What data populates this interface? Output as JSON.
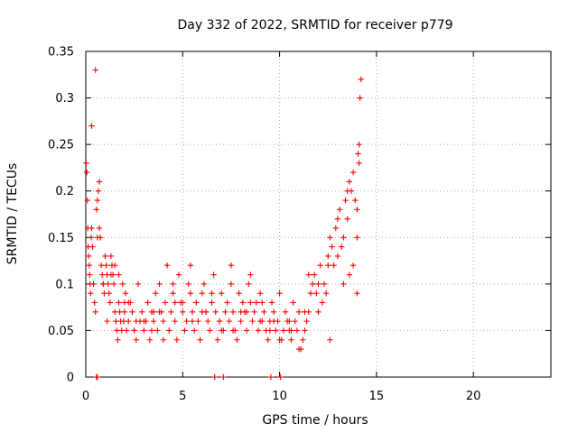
{
  "chart_data": {
    "type": "scatter",
    "title": "Day 332 of 2022, SRMTID for receiver p779",
    "xlabel": "GPS time / hours",
    "ylabel": "SRMTID / TECUs",
    "xlim": [
      0,
      24
    ],
    "ylim": [
      0,
      0.35
    ],
    "xticks": [
      0,
      5,
      10,
      15,
      20
    ],
    "yticks": [
      0,
      0.05,
      0.1,
      0.15,
      0.2,
      0.25,
      0.3,
      0.35
    ],
    "grid": true,
    "marker": "+",
    "color": "#ff0000",
    "series": [
      {
        "name": "SRMTID",
        "x": [
          0.02,
          0.05,
          0.08,
          0.1,
          0.12,
          0.15,
          0.18,
          0.2,
          0.22,
          0.25,
          0.28,
          0.3,
          0.35,
          0.4,
          0.45,
          0.5,
          0.55,
          0.6,
          0.65,
          0.7,
          0.75,
          0.8,
          0.85,
          0.9,
          0.95,
          1.0,
          1.05,
          1.1,
          1.15,
          1.2,
          1.25,
          1.3,
          1.35,
          1.4,
          1.45,
          1.5,
          1.55,
          1.6,
          1.65,
          1.7,
          1.75,
          1.8,
          1.85,
          1.9,
          1.95,
          2.0,
          2.05,
          2.1,
          2.2,
          2.3,
          2.4,
          2.5,
          2.6,
          2.7,
          2.8,
          2.9,
          3.0,
          3.1,
          3.2,
          3.3,
          3.4,
          3.5,
          3.6,
          3.7,
          3.8,
          3.9,
          4.0,
          4.1,
          4.2,
          4.3,
          4.4,
          4.5,
          4.6,
          4.7,
          4.8,
          4.9,
          5.0,
          5.1,
          5.2,
          5.3,
          5.4,
          5.5,
          5.6,
          5.7,
          5.8,
          5.9,
          6.0,
          6.1,
          6.2,
          6.3,
          6.4,
          6.5,
          6.6,
          6.7,
          6.8,
          6.9,
          7.0,
          7.1,
          7.2,
          7.3,
          7.4,
          7.5,
          7.6,
          7.7,
          7.8,
          7.9,
          8.0,
          8.1,
          8.2,
          8.3,
          8.4,
          8.5,
          8.6,
          8.7,
          8.8,
          8.9,
          9.0,
          9.1,
          9.2,
          9.3,
          9.4,
          9.5,
          9.6,
          9.7,
          9.8,
          9.9,
          10.0,
          10.1,
          10.2,
          10.3,
          10.4,
          10.5,
          10.6,
          10.7,
          10.8,
          10.9,
          11.0,
          11.1,
          11.2,
          11.3,
          11.4,
          11.5,
          11.6,
          11.7,
          11.8,
          11.9,
          12.0,
          12.1,
          12.2,
          12.3,
          12.4,
          12.5,
          12.6,
          12.7,
          12.8,
          12.9,
          13.0,
          13.1,
          13.2,
          13.3,
          13.4,
          13.5,
          13.6,
          13.7,
          13.8,
          13.9,
          14.0,
          14.05,
          14.1,
          14.15,
          14.2,
          0.5,
          0.6,
          0.9,
          1.3,
          1.7,
          2.2,
          2.6,
          3.4,
          3.8,
          4.6,
          5.4,
          6.2,
          6.9,
          7.6,
          8.3,
          9.1,
          9.7,
          10.6,
          11.3,
          12.6,
          13.3,
          13.6,
          13.8,
          14.0,
          14.1,
          0.3,
          0.7,
          1.1,
          1.5,
          2.0,
          2.5,
          3.0,
          3.5,
          4.0,
          4.5,
          5.0,
          5.5,
          6.0,
          6.5,
          7.0,
          7.5,
          8.0,
          8.5,
          9.0,
          9.5,
          10.0,
          10.5,
          11.0,
          11.5,
          12.0,
          12.5,
          13.0,
          13.5,
          14.0,
          0.55,
          0.6,
          6.65,
          7.1,
          9.55,
          10.05
        ],
        "y": [
          0.23,
          0.22,
          0.19,
          0.16,
          0.14,
          0.13,
          0.12,
          0.11,
          0.1,
          0.09,
          0.15,
          0.16,
          0.14,
          0.1,
          0.08,
          0.07,
          0.18,
          0.19,
          0.2,
          0.21,
          0.15,
          0.12,
          0.11,
          0.1,
          0.09,
          0.13,
          0.12,
          0.11,
          0.1,
          0.09,
          0.08,
          0.11,
          0.12,
          0.11,
          0.1,
          0.07,
          0.06,
          0.05,
          0.04,
          0.08,
          0.07,
          0.06,
          0.05,
          0.1,
          0.06,
          0.07,
          0.09,
          0.05,
          0.06,
          0.08,
          0.07,
          0.05,
          0.04,
          0.1,
          0.06,
          0.07,
          0.05,
          0.06,
          0.08,
          0.04,
          0.07,
          0.06,
          0.09,
          0.05,
          0.1,
          0.07,
          0.06,
          0.08,
          0.12,
          0.05,
          0.07,
          0.09,
          0.06,
          0.04,
          0.11,
          0.08,
          0.07,
          0.05,
          0.06,
          0.1,
          0.12,
          0.07,
          0.05,
          0.08,
          0.06,
          0.04,
          0.09,
          0.1,
          0.07,
          0.06,
          0.05,
          0.08,
          0.11,
          0.07,
          0.04,
          0.06,
          0.09,
          0.05,
          0.07,
          0.08,
          0.06,
          0.12,
          0.07,
          0.05,
          0.04,
          0.09,
          0.06,
          0.08,
          0.07,
          0.05,
          0.1,
          0.11,
          0.06,
          0.07,
          0.08,
          0.05,
          0.09,
          0.06,
          0.07,
          0.05,
          0.04,
          0.06,
          0.08,
          0.07,
          0.05,
          0.06,
          0.09,
          0.04,
          0.05,
          0.07,
          0.06,
          0.05,
          0.04,
          0.08,
          0.06,
          0.05,
          0.07,
          0.03,
          0.04,
          0.05,
          0.06,
          0.07,
          0.09,
          0.1,
          0.11,
          0.09,
          0.1,
          0.12,
          0.08,
          0.1,
          0.09,
          0.13,
          0.15,
          0.14,
          0.12,
          0.16,
          0.13,
          0.18,
          0.14,
          0.15,
          0.19,
          0.17,
          0.21,
          0.2,
          0.22,
          0.19,
          0.18,
          0.24,
          0.23,
          0.3,
          0.32,
          0.33,
          0.15,
          0.1,
          0.13,
          0.11,
          0.08,
          0.06,
          0.05,
          0.07,
          0.08,
          0.09,
          0.07,
          0.06,
          0.05,
          0.07,
          0.08,
          0.06,
          0.05,
          0.07,
          0.04,
          0.1,
          0.11,
          0.12,
          0.15,
          0.25,
          0.27,
          0.16,
          0.06,
          0.12,
          0.08,
          0.05,
          0.06,
          0.07,
          0.04,
          0.1,
          0.08,
          0.06,
          0.07,
          0.09,
          0.05,
          0.1,
          0.07,
          0.08,
          0.06,
          0.05,
          0.04,
          0.06,
          0.03,
          0.11,
          0.07,
          0.12,
          0.17,
          0.2,
          0.09,
          0.0,
          0.0,
          0.0,
          0.0,
          0.0,
          0.0
        ]
      }
    ]
  }
}
